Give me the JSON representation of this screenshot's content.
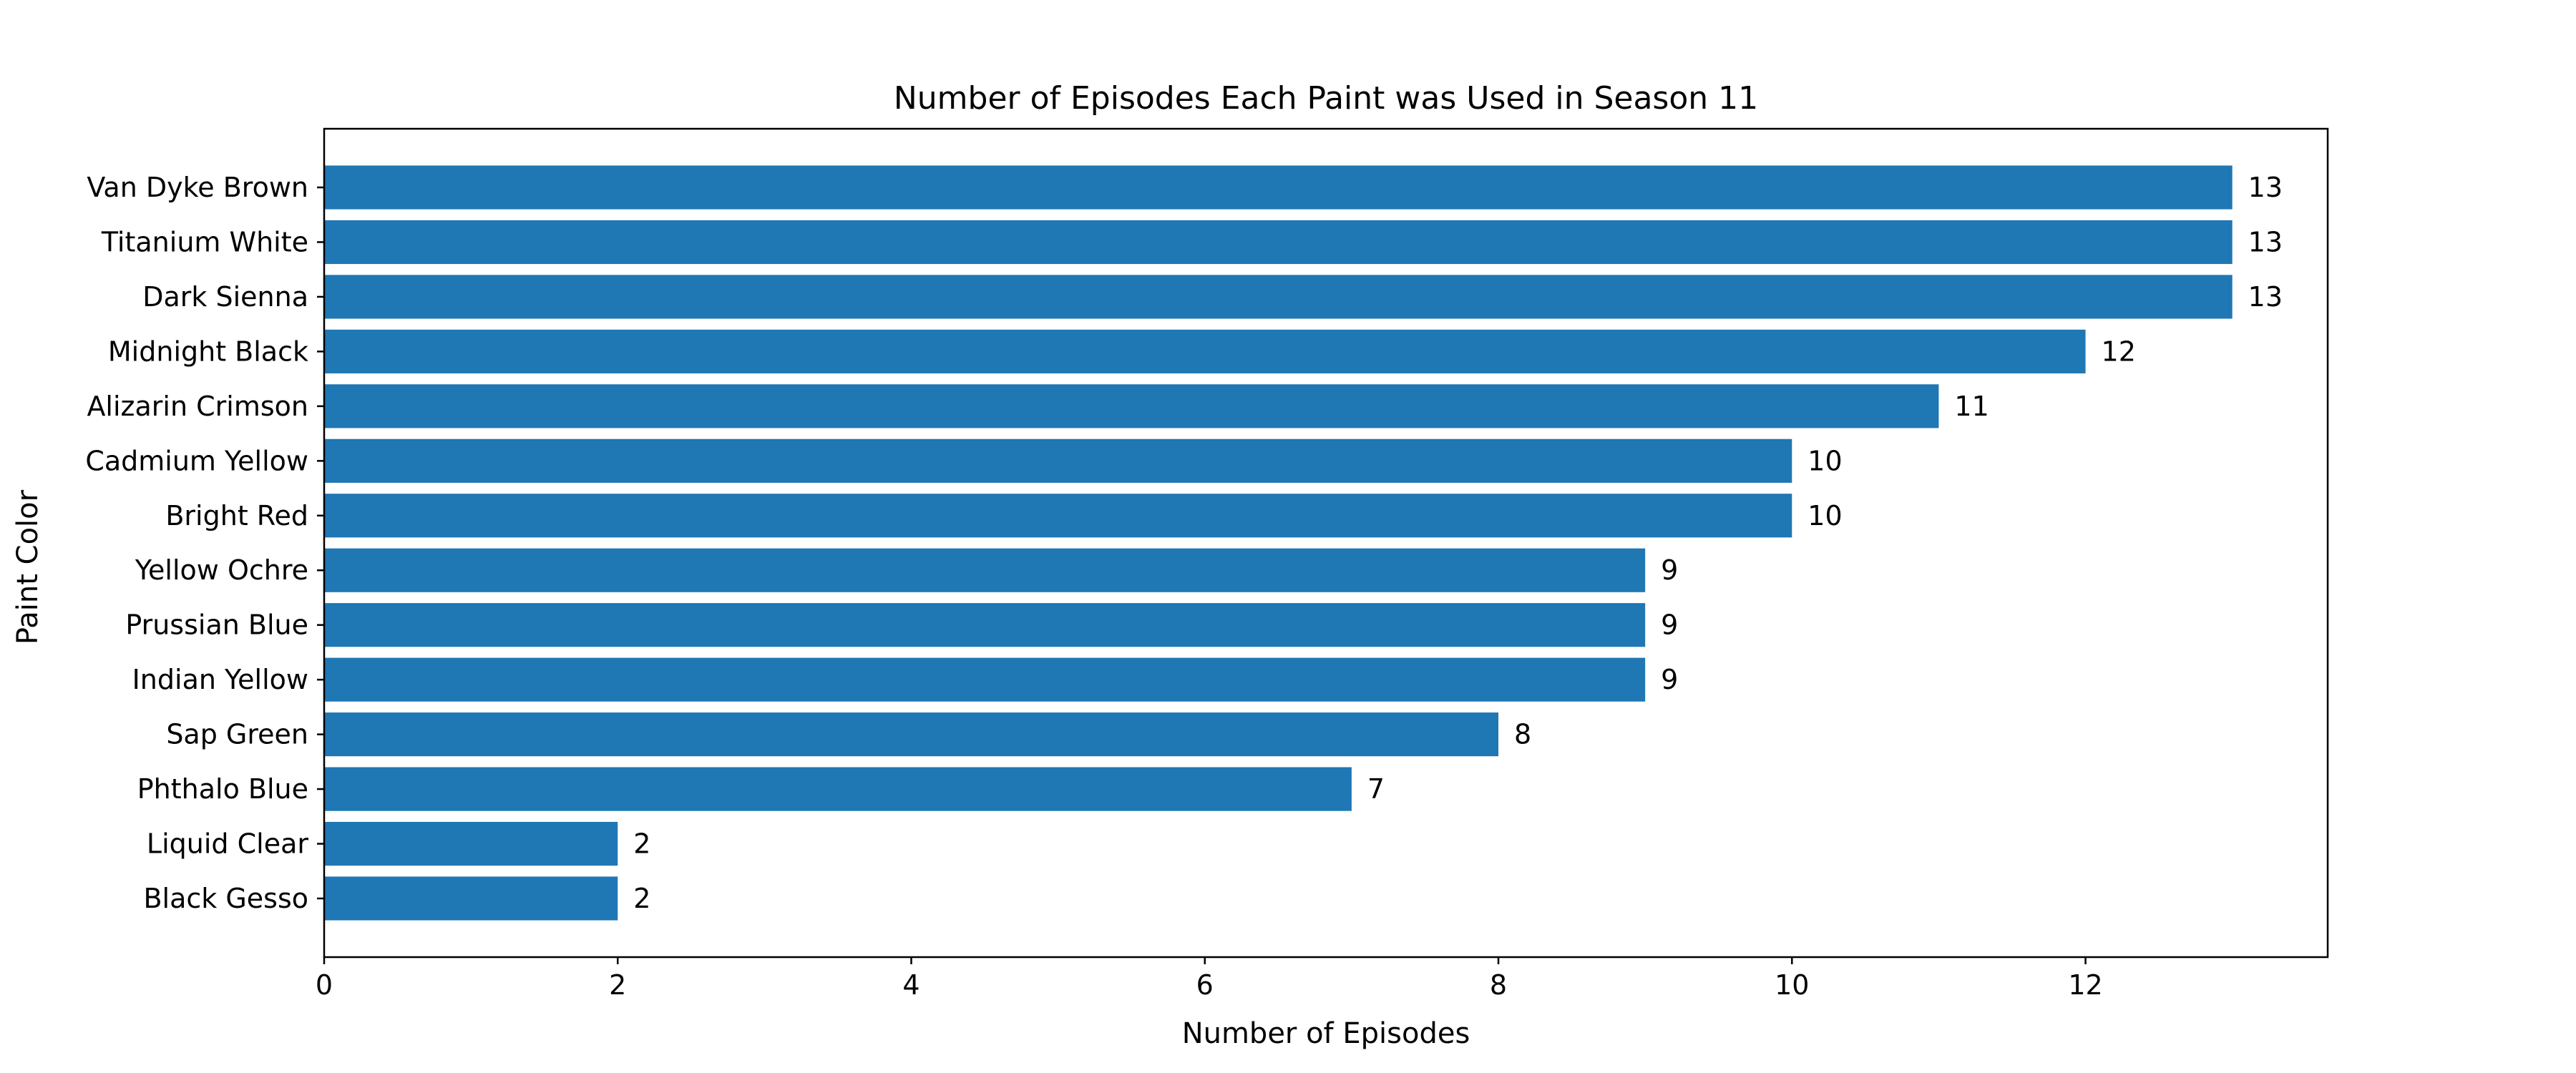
{
  "chart_data": {
    "type": "bar",
    "orientation": "horizontal",
    "title": "Number of Episodes Each Paint was Used in Season 11",
    "xlabel": "Number of Episodes",
    "ylabel": "Paint Color",
    "categories": [
      "Van Dyke Brown",
      "Titanium White",
      "Dark Sienna",
      "Midnight Black",
      "Alizarin Crimson",
      "Cadmium Yellow",
      "Bright Red",
      "Yellow Ochre",
      "Prussian Blue",
      "Indian Yellow",
      "Sap Green",
      "Phthalo Blue",
      "Liquid Clear",
      "Black Gesso"
    ],
    "values": [
      13,
      13,
      13,
      12,
      11,
      10,
      10,
      9,
      9,
      9,
      8,
      7,
      2,
      2
    ],
    "xlim": [
      0,
      13.65
    ],
    "xticks": [
      0,
      2,
      4,
      6,
      8,
      10,
      12
    ],
    "grid": false,
    "legend": "none",
    "bar_color": "#1f77b4"
  }
}
